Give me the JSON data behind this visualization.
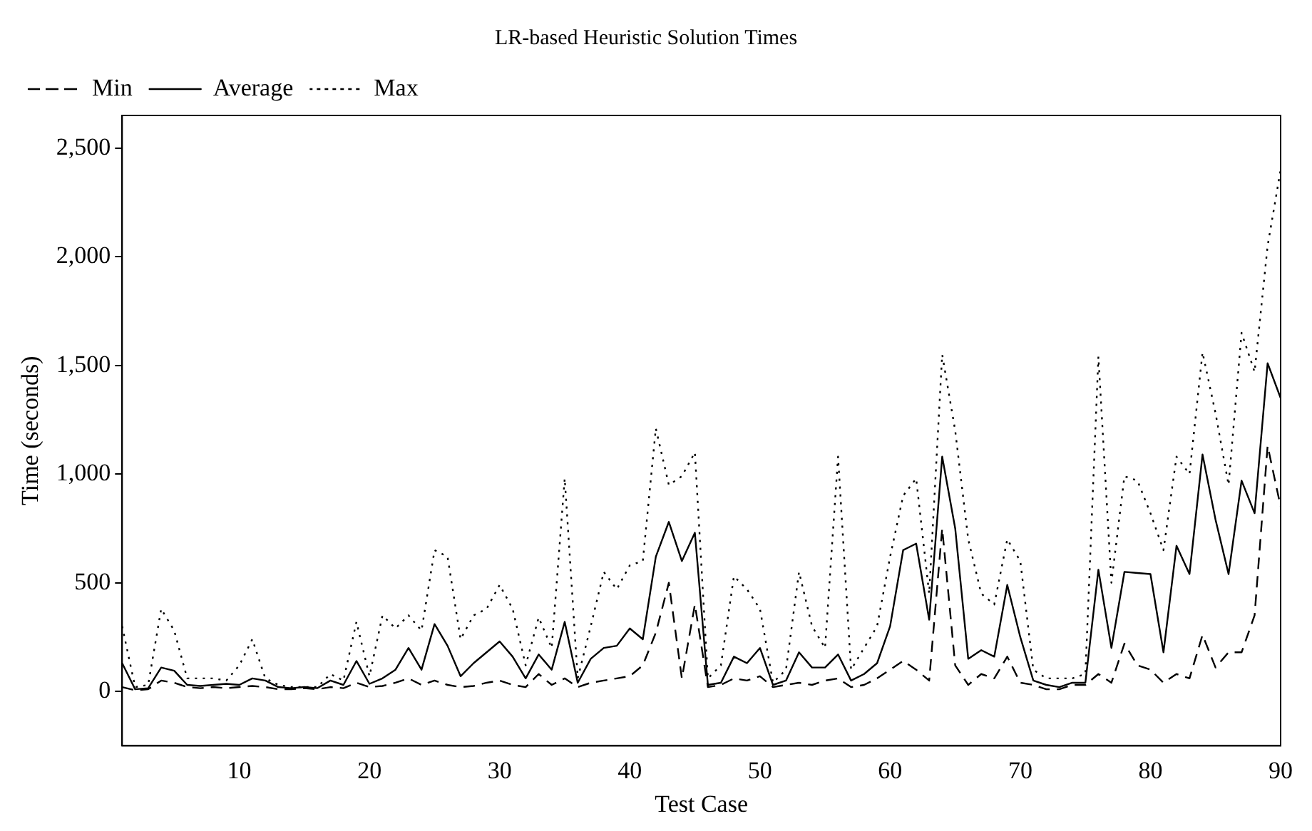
{
  "chart_data": {
    "type": "line",
    "title": "LR-based Heuristic Solution Times",
    "xlabel": "Test Case",
    "ylabel": "Time (seconds)",
    "x": [
      1,
      2,
      3,
      4,
      5,
      6,
      7,
      8,
      9,
      10,
      11,
      12,
      13,
      14,
      15,
      16,
      17,
      18,
      19,
      20,
      21,
      22,
      23,
      24,
      25,
      26,
      27,
      28,
      29,
      30,
      31,
      32,
      33,
      34,
      35,
      36,
      37,
      38,
      39,
      40,
      41,
      42,
      43,
      44,
      45,
      46,
      47,
      48,
      49,
      50,
      51,
      52,
      53,
      54,
      55,
      56,
      57,
      58,
      59,
      60,
      61,
      62,
      63,
      64,
      65,
      66,
      67,
      68,
      69,
      70,
      71,
      72,
      73,
      74,
      75,
      76,
      77,
      78,
      79,
      80,
      81,
      82,
      83,
      84,
      85,
      86,
      87,
      88,
      89,
      90
    ],
    "series": [
      {
        "name": "Min",
        "color": "#000000",
        "line_style": "dashed",
        "values": [
          20,
          5,
          10,
          50,
          40,
          20,
          15,
          20,
          15,
          20,
          25,
          20,
          10,
          10,
          15,
          10,
          20,
          15,
          40,
          20,
          25,
          40,
          60,
          30,
          50,
          30,
          20,
          25,
          40,
          50,
          30,
          20,
          80,
          30,
          60,
          20,
          40,
          50,
          60,
          70,
          120,
          270,
          500,
          60,
          400,
          20,
          30,
          60,
          50,
          70,
          20,
          30,
          40,
          30,
          50,
          60,
          20,
          30,
          60,
          100,
          140,
          100,
          50,
          750,
          120,
          30,
          80,
          60,
          160,
          40,
          30,
          10,
          10,
          30,
          30,
          80,
          40,
          220,
          120,
          100,
          40,
          80,
          60,
          260,
          110,
          180,
          180,
          350,
          1130,
          850
        ]
      },
      {
        "name": "Average",
        "color": "#000000",
        "line_style": "solid",
        "values": [
          130,
          10,
          15,
          110,
          95,
          30,
          25,
          30,
          35,
          30,
          60,
          50,
          20,
          15,
          20,
          15,
          50,
          30,
          140,
          35,
          60,
          100,
          200,
          100,
          310,
          210,
          70,
          130,
          180,
          230,
          160,
          60,
          170,
          100,
          320,
          40,
          150,
          200,
          210,
          290,
          240,
          620,
          780,
          600,
          730,
          30,
          40,
          160,
          130,
          200,
          30,
          50,
          180,
          110,
          110,
          170,
          50,
          80,
          130,
          300,
          650,
          680,
          330,
          1080,
          750,
          150,
          190,
          160,
          490,
          250,
          50,
          30,
          20,
          40,
          40,
          560,
          200,
          550,
          545,
          540,
          180,
          670,
          540,
          1090,
          790,
          540,
          970,
          820,
          1510,
          1350
        ]
      },
      {
        "name": "Max",
        "color": "#000000",
        "line_style": "dotted",
        "values": [
          300,
          20,
          30,
          380,
          280,
          60,
          60,
          60,
          50,
          120,
          240,
          60,
          30,
          20,
          20,
          20,
          80,
          50,
          320,
          70,
          350,
          290,
          350,
          280,
          650,
          620,
          240,
          350,
          380,
          490,
          380,
          120,
          340,
          200,
          980,
          60,
          300,
          550,
          470,
          580,
          600,
          1210,
          950,
          990,
          1100,
          60,
          120,
          530,
          470,
          380,
          40,
          100,
          550,
          300,
          200,
          1080,
          100,
          200,
          300,
          620,
          900,
          980,
          450,
          1550,
          1200,
          700,
          450,
          400,
          700,
          600,
          100,
          60,
          60,
          60,
          80,
          1540,
          500,
          990,
          970,
          820,
          650,
          1080,
          1000,
          1560,
          1280,
          950,
          1650,
          1470,
          2050,
          2400
        ]
      }
    ],
    "xlim": [
      1,
      90
    ],
    "xticks": [
      10,
      20,
      30,
      40,
      50,
      60,
      70,
      80,
      90
    ],
    "ylim": [
      -250,
      2650
    ],
    "yticks": [
      0,
      500,
      {
        "value": 1000,
        "label": "1,000"
      },
      {
        "value": 1500,
        "label": "1,500"
      },
      {
        "value": 2000,
        "label": "2,000"
      },
      {
        "value": 2500,
        "label": "2,500"
      }
    ],
    "grid": false,
    "legend": "top left",
    "marker": "none"
  }
}
